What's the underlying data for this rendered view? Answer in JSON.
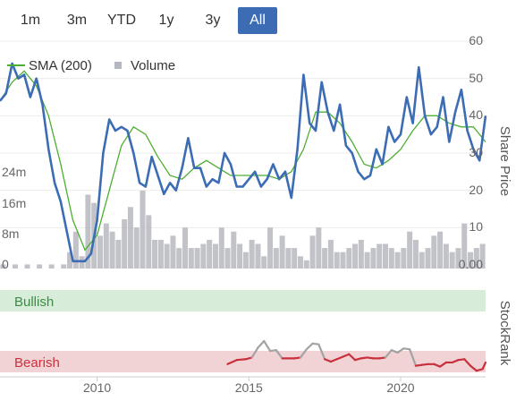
{
  "range_selector": {
    "buttons": [
      "1m",
      "3m",
      "YTD",
      "1y",
      "3y",
      "All"
    ],
    "selected": "All",
    "accent_color": "#3c6db4"
  },
  "chart_data": [
    {
      "type": "line",
      "legend": [
        {
          "name": "SMA (200)",
          "color": "#4caf2f",
          "marker": "line"
        },
        {
          "name": "Volume",
          "color": "#b6b8c0",
          "marker": "square"
        }
      ],
      "ylabel": "Share Price",
      "ylim_price": [
        0,
        60
      ],
      "price_ticks": [
        "0.00",
        "10",
        "20",
        "30",
        "40",
        "50",
        "60"
      ],
      "volume_ticks": [
        "0",
        "8m",
        "16m",
        "24m"
      ],
      "ylim_volume_m": [
        0,
        24
      ],
      "xlim": [
        2006.8,
        2022.8
      ],
      "x_tick_labels": [
        "2010",
        "2015",
        "2020"
      ],
      "x_tick_values": [
        2010,
        2015,
        2020
      ],
      "legend_position": "top-left",
      "grid": "horizontal",
      "series": [
        {
          "name": "Share Price",
          "color": "#3c6db4",
          "x": [
            2006.8,
            2007.0,
            2007.2,
            2007.4,
            2007.6,
            2007.8,
            2008.0,
            2008.2,
            2008.4,
            2008.6,
            2008.8,
            2009.0,
            2009.2,
            2009.4,
            2009.6,
            2009.8,
            2010.0,
            2010.2,
            2010.4,
            2010.6,
            2010.8,
            2011.0,
            2011.2,
            2011.4,
            2011.6,
            2011.8,
            2012.0,
            2012.2,
            2012.4,
            2012.6,
            2012.8,
            2013.0,
            2013.2,
            2013.4,
            2013.6,
            2013.8,
            2014.0,
            2014.2,
            2014.4,
            2014.6,
            2014.8,
            2015.0,
            2015.2,
            2015.4,
            2015.6,
            2015.8,
            2016.0,
            2016.2,
            2016.4,
            2016.6,
            2016.8,
            2017.0,
            2017.2,
            2017.4,
            2017.6,
            2017.8,
            2018.0,
            2018.2,
            2018.4,
            2018.6,
            2018.8,
            2019.0,
            2019.2,
            2019.4,
            2019.6,
            2019.8,
            2020.0,
            2020.2,
            2020.4,
            2020.6,
            2020.8,
            2021.0,
            2021.2,
            2021.4,
            2021.6,
            2021.8,
            2022.0,
            2022.2,
            2022.4,
            2022.6,
            2022.8
          ],
          "y": [
            44,
            46,
            54,
            50,
            51,
            45,
            50,
            43,
            31,
            22,
            17,
            9,
            1,
            1,
            1,
            3,
            12,
            30,
            39,
            36,
            37,
            36,
            30,
            22,
            21,
            29,
            24,
            19,
            22,
            20,
            26,
            34,
            26,
            26,
            21,
            23,
            22,
            30,
            27,
            21,
            21,
            23,
            25,
            21,
            23,
            27,
            23,
            25,
            18,
            31,
            51,
            38,
            36,
            49,
            41,
            36,
            43,
            32,
            30,
            25,
            23,
            24,
            31,
            27,
            37,
            33,
            35,
            45,
            38,
            53,
            40,
            35,
            37,
            45,
            33,
            41,
            47,
            36,
            31,
            28,
            40
          ]
        },
        {
          "name": "SMA (200)",
          "color": "#4caf2f",
          "x": [
            2006.8,
            2007.2,
            2007.6,
            2008.0,
            2008.4,
            2008.8,
            2009.2,
            2009.6,
            2010.0,
            2010.4,
            2010.8,
            2011.2,
            2011.6,
            2012.0,
            2012.4,
            2012.8,
            2013.2,
            2013.6,
            2014.0,
            2014.4,
            2014.8,
            2015.2,
            2015.6,
            2016.0,
            2016.4,
            2016.8,
            2017.2,
            2017.6,
            2018.0,
            2018.4,
            2018.8,
            2019.2,
            2019.6,
            2020.0,
            2020.4,
            2020.8,
            2021.2,
            2021.6,
            2022.0,
            2022.4,
            2022.8
          ],
          "y": [
            44,
            49,
            52,
            48,
            40,
            27,
            12,
            4,
            8,
            20,
            32,
            37,
            35,
            29,
            24,
            23,
            26,
            28,
            26,
            24,
            24,
            24,
            24,
            23,
            25,
            31,
            41,
            41,
            38,
            33,
            27,
            26,
            28,
            31,
            36,
            40,
            40,
            38,
            37,
            37,
            33
          ]
        },
        {
          "name": "Volume",
          "color": "#b6b8c0",
          "x": [
            2006.9,
            2007.3,
            2007.7,
            2008.1,
            2008.5,
            2008.9,
            2009.1,
            2009.3,
            2009.5,
            2009.7,
            2009.9,
            2010.1,
            2010.3,
            2010.5,
            2010.7,
            2010.9,
            2011.1,
            2011.3,
            2011.5,
            2011.7,
            2011.9,
            2012.1,
            2012.3,
            2012.5,
            2012.7,
            2012.9,
            2013.1,
            2013.3,
            2013.5,
            2013.7,
            2013.9,
            2014.1,
            2014.3,
            2014.5,
            2014.7,
            2014.9,
            2015.1,
            2015.3,
            2015.5,
            2015.7,
            2015.9,
            2016.1,
            2016.3,
            2016.5,
            2016.7,
            2016.9,
            2017.1,
            2017.3,
            2017.5,
            2017.7,
            2017.9,
            2018.1,
            2018.3,
            2018.5,
            2018.7,
            2018.9,
            2019.1,
            2019.3,
            2019.5,
            2019.7,
            2019.9,
            2020.1,
            2020.3,
            2020.5,
            2020.7,
            2020.9,
            2021.1,
            2021.3,
            2021.5,
            2021.7,
            2021.9,
            2022.1,
            2022.3,
            2022.5,
            2022.7
          ],
          "y_m": [
            1,
            1,
            1,
            1,
            1,
            1,
            4,
            9,
            3,
            18,
            16,
            8,
            11,
            9,
            7,
            12,
            15,
            10,
            19,
            13,
            7,
            7,
            6,
            8,
            5,
            10,
            5,
            5,
            6,
            7,
            6,
            10,
            5,
            9,
            6,
            4,
            7,
            6,
            3,
            10,
            5,
            8,
            5,
            5,
            3,
            2,
            8,
            10,
            5,
            7,
            4,
            4,
            5,
            6,
            7,
            4,
            5,
            6,
            6,
            5,
            4,
            5,
            9,
            7,
            4,
            5,
            8,
            9,
            6,
            4,
            5,
            11,
            4,
            5,
            6
          ]
        }
      ]
    },
    {
      "type": "line",
      "ylabel": "StockRank",
      "bands": [
        {
          "label": "Bullish",
          "color": "#d7ecd9",
          "text_color": "#3d8b43"
        },
        {
          "label": "Bearish",
          "color": "#f2d3d5",
          "text_color": "#c9303d"
        }
      ],
      "ylim": [
        0,
        100
      ],
      "series": [
        {
          "name": "StockRank",
          "color_in_band": "#c9303d",
          "color_outside": "#a3a3a3",
          "x": [
            2014.3,
            2014.6,
            2014.9,
            2015.1,
            2015.3,
            2015.5,
            2015.7,
            2015.9,
            2016.1,
            2016.3,
            2016.5,
            2016.7,
            2016.9,
            2017.1,
            2017.3,
            2017.5,
            2017.7,
            2017.9,
            2018.1,
            2018.3,
            2018.5,
            2018.7,
            2018.9,
            2019.1,
            2019.3,
            2019.5,
            2019.7,
            2019.9,
            2020.1,
            2020.3,
            2020.5,
            2020.7,
            2020.9,
            2021.1,
            2021.3,
            2021.5,
            2021.7,
            2021.9,
            2022.1,
            2022.3,
            2022.5,
            2022.7,
            2022.8
          ],
          "y": [
            10,
            15,
            16,
            18,
            30,
            38,
            26,
            27,
            17,
            17,
            17,
            18,
            28,
            35,
            34,
            16,
            13,
            16,
            19,
            22,
            15,
            17,
            18,
            17,
            17,
            18,
            27,
            24,
            29,
            28,
            8,
            9,
            10,
            10,
            7,
            12,
            12,
            15,
            16,
            8,
            2,
            4,
            12
          ]
        }
      ]
    }
  ]
}
